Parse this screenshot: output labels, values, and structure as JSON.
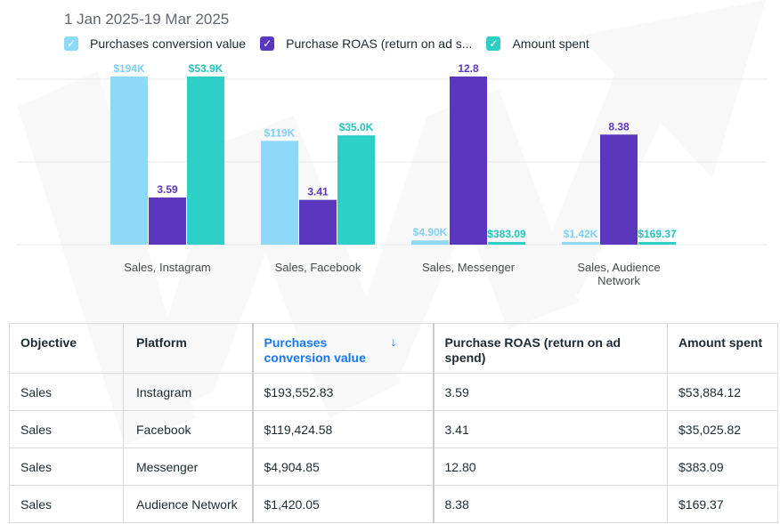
{
  "header": {
    "date_range": "1 Jan 2025-19 Mar 2025"
  },
  "legend": [
    {
      "label": "Purchases conversion value",
      "color": "#8fd9f8",
      "icon": "check-icon"
    },
    {
      "label": "Purchase ROAS (return on ad s...",
      "color": "#5a37bd",
      "icon": "check-icon"
    },
    {
      "label": "Amount spent",
      "color": "#2ecfc7",
      "icon": "check-icon"
    }
  ],
  "chart_data": {
    "type": "bar",
    "categories": [
      "Sales, Instagram",
      "Sales, Facebook",
      "Sales, Messenger",
      "Sales, Audience Network"
    ],
    "category_lines": [
      [
        "Sales, Instagram"
      ],
      [
        "Sales, Facebook"
      ],
      [
        "Sales, Messenger"
      ],
      [
        "Sales, Audience",
        "Network"
      ]
    ],
    "series": [
      {
        "name": "Purchases conversion value",
        "values": [
          193552.83,
          119424.58,
          4904.85,
          1420.05
        ],
        "labels": [
          "$194K",
          "$119K",
          "$4.90K",
          "$1.42K"
        ],
        "color": "#8fd9f8",
        "label_color": "#7fd0f4"
      },
      {
        "name": "Purchase ROAS (return on ad spend)",
        "values": [
          3.59,
          3.41,
          12.8,
          8.38
        ],
        "labels": [
          "3.59",
          "3.41",
          "12.8",
          "8.38"
        ],
        "color": "#5a37bd",
        "label_color": "#5a37bd"
      },
      {
        "name": "Amount spent",
        "values": [
          53884.12,
          35025.82,
          383.09,
          169.37
        ],
        "labels": [
          "$53.9K",
          "$35.0K",
          "$383.09",
          "$169.37"
        ],
        "color": "#2ecfc7",
        "label_color": "#23c3bb"
      }
    ],
    "grid": true,
    "legend_position": "top-left"
  },
  "table": {
    "headers": {
      "objective": "Objective",
      "platform": "Platform",
      "pcv": "Purchases conversion value",
      "roas": "Purchase ROAS (return on ad spend)",
      "amount": "Amount spent"
    },
    "sort_icon": "arrow-down-icon",
    "rows": [
      {
        "objective": "Sales",
        "platform": "Instagram",
        "pcv": "$193,552.83",
        "roas": "3.59",
        "amount": "$53,884.12"
      },
      {
        "objective": "Sales",
        "platform": "Facebook",
        "pcv": "$119,424.58",
        "roas": "3.41",
        "amount": "$35,025.82"
      },
      {
        "objective": "Sales",
        "platform": "Messenger",
        "pcv": "$4,904.85",
        "roas": "12.80",
        "amount": "$383.09"
      },
      {
        "objective": "Sales",
        "platform": "Audience Network",
        "pcv": "$1,420.05",
        "roas": "8.38",
        "amount": "$169.37"
      }
    ]
  }
}
